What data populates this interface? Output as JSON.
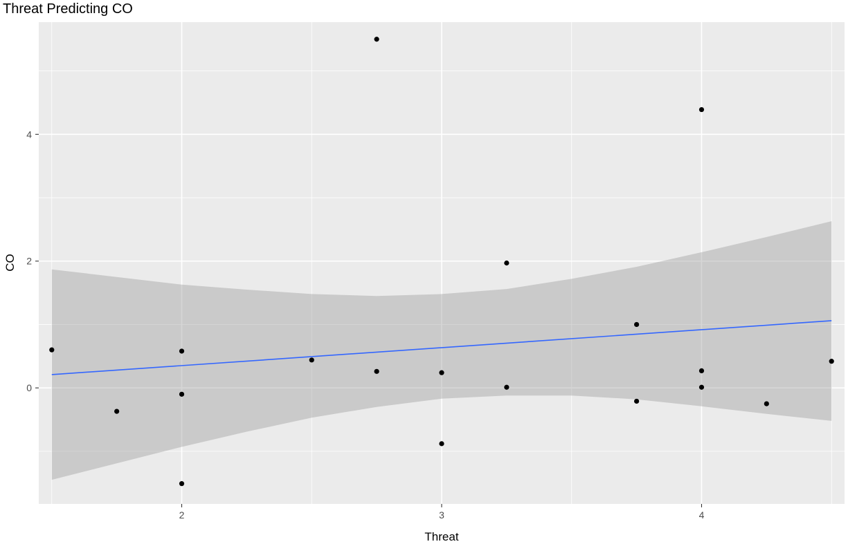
{
  "chart_data": {
    "type": "scatter",
    "title": "Threat Predicting CO",
    "xlabel": "Threat",
    "ylabel": "CO",
    "xlim": [
      1.45,
      4.55
    ],
    "ylim": [
      -1.83,
      5.77
    ],
    "x_ticks": [
      2,
      3,
      4
    ],
    "y_ticks": [
      0,
      2,
      4
    ],
    "grid": true,
    "legend": "none",
    "colors": {
      "panel": "#ebebeb",
      "grid": "#ffffff",
      "points": "#000000",
      "line": "#3366ff",
      "ribbon": "#999999",
      "text": "#000000",
      "tick_text": "#4d4d4d"
    },
    "series": [
      {
        "points": [
          {
            "x": 1.5,
            "y": 0.6
          },
          {
            "x": 1.75,
            "y": -0.37
          },
          {
            "x": 2.0,
            "y": 0.58
          },
          {
            "x": 2.0,
            "y": -0.1
          },
          {
            "x": 2.0,
            "y": -1.51
          },
          {
            "x": 2.5,
            "y": 0.44
          },
          {
            "x": 2.75,
            "y": 5.5
          },
          {
            "x": 2.75,
            "y": 0.26
          },
          {
            "x": 3.0,
            "y": 0.24
          },
          {
            "x": 3.0,
            "y": -0.88
          },
          {
            "x": 3.25,
            "y": 1.97
          },
          {
            "x": 3.25,
            "y": 0.01
          },
          {
            "x": 3.75,
            "y": 1.0
          },
          {
            "x": 3.75,
            "y": -0.21
          },
          {
            "x": 4.0,
            "y": 4.39
          },
          {
            "x": 4.0,
            "y": 0.27
          },
          {
            "x": 4.0,
            "y": 0.01
          },
          {
            "x": 4.25,
            "y": -0.25
          },
          {
            "x": 4.5,
            "y": 0.42
          }
        ]
      }
    ],
    "fit": {
      "method": "lm",
      "x": [
        1.5,
        4.5
      ],
      "y": [
        0.21,
        1.06
      ],
      "ci_x": [
        1.5,
        2.0,
        2.25,
        2.5,
        2.75,
        3.0,
        3.25,
        3.5,
        3.75,
        4.0,
        4.25,
        4.5
      ],
      "ci_upper": [
        1.87,
        1.63,
        1.55,
        1.48,
        1.45,
        1.48,
        1.56,
        1.72,
        1.91,
        2.14,
        2.38,
        2.63
      ],
      "ci_lower": [
        -1.45,
        -0.93,
        -0.69,
        -0.47,
        -0.3,
        -0.17,
        -0.12,
        -0.12,
        -0.18,
        -0.29,
        -0.41,
        -0.52
      ]
    }
  }
}
